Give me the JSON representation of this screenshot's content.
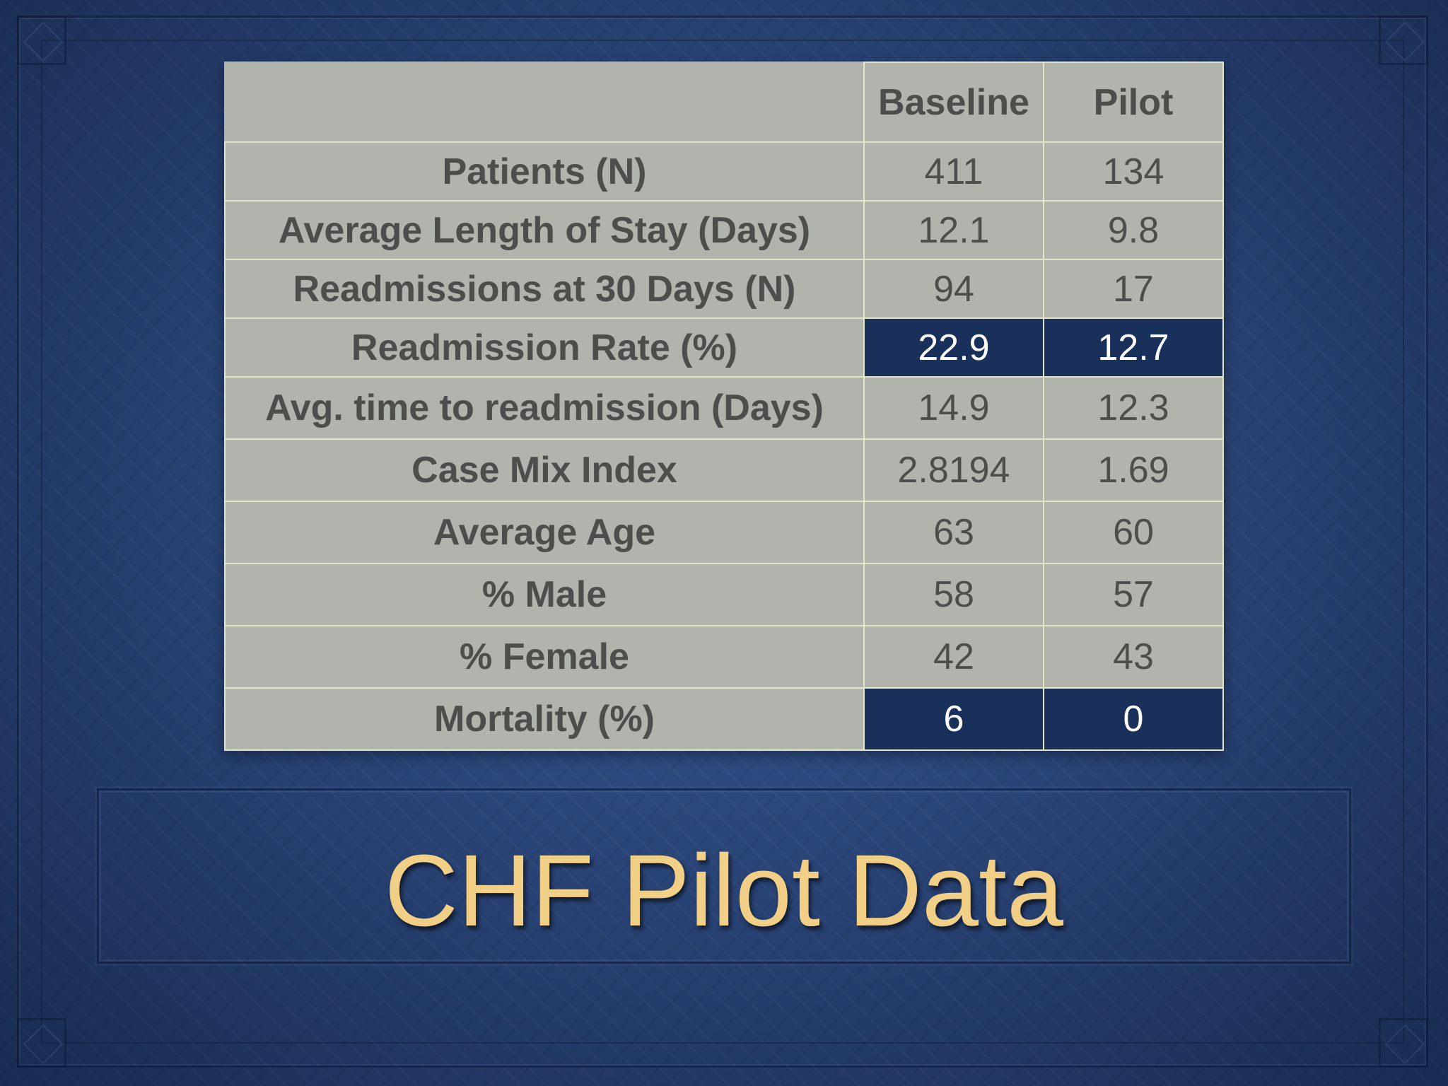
{
  "slide": {
    "title": "CHF Pilot Data",
    "colors": {
      "background": "#2a4577",
      "table_cell": "#b1b3ad",
      "table_text": "#4d4d4b",
      "highlight_cell": "#19305a",
      "title_text": "#f2cf87"
    }
  },
  "table": {
    "headers": [
      "",
      "Baseline",
      "Pilot"
    ],
    "rows": [
      {
        "label": "Patients (N)",
        "baseline": "411",
        "pilot": "134",
        "highlight": false
      },
      {
        "label": "Average Length of Stay (Days)",
        "baseline": "12.1",
        "pilot": "9.8",
        "highlight": false
      },
      {
        "label": "Readmissions at 30 Days (N)",
        "baseline": "94",
        "pilot": "17",
        "highlight": false
      },
      {
        "label": "Readmission Rate (%)",
        "baseline": "22.9",
        "pilot": "12.7",
        "highlight": true
      },
      {
        "label": "Avg. time to readmission (Days)",
        "baseline": "14.9",
        "pilot": "12.3",
        "highlight": false
      },
      {
        "label": "Case Mix Index",
        "baseline": "2.8194",
        "pilot": "1.69",
        "highlight": false
      },
      {
        "label": "Average Age",
        "baseline": "63",
        "pilot": "60",
        "highlight": false
      },
      {
        "label": "% Male",
        "baseline": "58",
        "pilot": "57",
        "highlight": false
      },
      {
        "label": "% Female",
        "baseline": "42",
        "pilot": "43",
        "highlight": false
      },
      {
        "label": "Mortality (%)",
        "baseline": "6",
        "pilot": "0",
        "highlight": true
      }
    ]
  }
}
